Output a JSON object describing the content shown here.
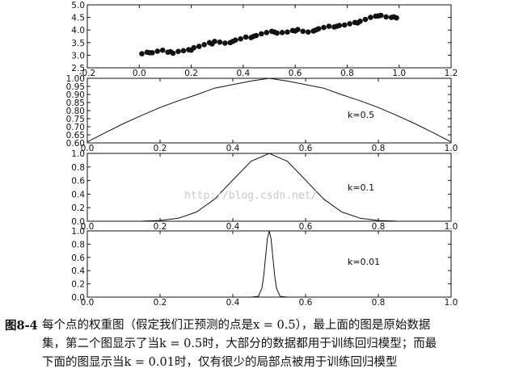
{
  "watermark": "http://blog.csdn.net/",
  "caption": {
    "figure_number": "图8-4",
    "lines": [
      "每个点的权重图（假定我们正预测的点是x = 0.5），最上面的图是原始数据",
      "集，第二个图显示了当k = 0.5时，大部分的数据都用于训练回归模型；而最",
      "下面的图显示当k = 0.01时，仅有很少的局部点被用于训练回归模型"
    ]
  },
  "chart_data": [
    {
      "type": "scatter",
      "title": "",
      "xlabel": "",
      "ylabel": "",
      "xlim": [
        -0.2,
        1.2
      ],
      "ylim": [
        2.5,
        5.0
      ],
      "x_ticks": [
        "-0.2",
        "0.0",
        "0.2",
        "0.4",
        "0.6",
        "0.8",
        "1.0",
        "1.2"
      ],
      "y_ticks": [
        "2.5",
        "3.0",
        "3.5",
        "4.0",
        "4.5",
        "5.0"
      ],
      "marker_color": "#111111",
      "series": [
        {
          "x": [
            0.01,
            0.03,
            0.05,
            0.07,
            0.09,
            0.11,
            0.13,
            0.15,
            0.17,
            0.19,
            0.21,
            0.23,
            0.25,
            0.27,
            0.29,
            0.31,
            0.33,
            0.35,
            0.37,
            0.39,
            0.41,
            0.43,
            0.45,
            0.47,
            0.49,
            0.51,
            0.53,
            0.55,
            0.57,
            0.59,
            0.61,
            0.63,
            0.65,
            0.67,
            0.69,
            0.71,
            0.73,
            0.75,
            0.77,
            0.79,
            0.81,
            0.83,
            0.85,
            0.87,
            0.89,
            0.91,
            0.93,
            0.95,
            0.97,
            0.99,
            0.04,
            0.12,
            0.2,
            0.28,
            0.36,
            0.44,
            0.52,
            0.6,
            0.68,
            0.76,
            0.84,
            0.92,
            0.98
          ],
          "y": [
            3.06,
            3.12,
            3.1,
            3.16,
            3.2,
            3.12,
            3.08,
            3.15,
            3.18,
            3.22,
            3.3,
            3.35,
            3.42,
            3.5,
            3.55,
            3.52,
            3.48,
            3.5,
            3.6,
            3.65,
            3.72,
            3.7,
            3.78,
            3.85,
            3.9,
            3.95,
            3.88,
            3.9,
            3.92,
            3.98,
            4.02,
            3.95,
            3.92,
            3.96,
            4.05,
            4.1,
            4.15,
            4.12,
            4.18,
            4.2,
            4.25,
            4.3,
            4.35,
            4.42,
            4.5,
            4.55,
            4.58,
            4.52,
            4.5,
            4.48,
            3.1,
            3.14,
            3.2,
            3.45,
            3.55,
            3.75,
            3.92,
            3.96,
            4.0,
            4.15,
            4.28,
            4.56,
            4.52
          ]
        }
      ]
    },
    {
      "type": "line",
      "title": "",
      "xlabel": "",
      "ylabel": "",
      "xlim": [
        0.0,
        1.0
      ],
      "ylim": [
        0.6,
        1.0
      ],
      "x_ticks": [
        "0.0",
        "0.2",
        "0.4",
        "0.6",
        "0.8",
        "1.0"
      ],
      "y_ticks": [
        "0.60",
        "0.65",
        "0.70",
        "0.75",
        "0.80",
        "0.85",
        "0.90",
        "0.95",
        "1.00"
      ],
      "annotation": "k=0.5",
      "series": [
        {
          "x": [
            0.0,
            0.05,
            0.1,
            0.15,
            0.2,
            0.25,
            0.3,
            0.35,
            0.4,
            0.45,
            0.5,
            0.55,
            0.6,
            0.65,
            0.7,
            0.75,
            0.8,
            0.85,
            0.9,
            0.95,
            1.0
          ],
          "y": [
            0.606,
            0.664,
            0.72,
            0.771,
            0.819,
            0.861,
            0.898,
            0.939,
            0.961,
            0.983,
            1.0,
            0.983,
            0.961,
            0.939,
            0.898,
            0.861,
            0.819,
            0.771,
            0.72,
            0.664,
            0.606
          ]
        }
      ]
    },
    {
      "type": "line",
      "title": "",
      "xlabel": "",
      "ylabel": "",
      "xlim": [
        0.0,
        1.0
      ],
      "ylim": [
        0.0,
        1.0
      ],
      "x_ticks": [
        "0.0",
        "0.2",
        "0.4",
        "0.6",
        "0.8",
        "1.0"
      ],
      "y_ticks": [
        "0.0",
        "0.2",
        "0.4",
        "0.6",
        "0.8",
        "1.0"
      ],
      "annotation": "k=0.1",
      "series": [
        {
          "x": [
            0.0,
            0.05,
            0.1,
            0.15,
            0.2,
            0.25,
            0.3,
            0.35,
            0.4,
            0.45,
            0.5,
            0.55,
            0.6,
            0.65,
            0.7,
            0.75,
            0.8,
            0.85,
            0.9,
            0.95,
            1.0
          ],
          "y": [
            0.0,
            0.0,
            0.0,
            0.002,
            0.011,
            0.044,
            0.135,
            0.325,
            0.607,
            0.883,
            1.0,
            0.883,
            0.607,
            0.325,
            0.135,
            0.044,
            0.011,
            0.002,
            0.0,
            0.0,
            0.0
          ]
        }
      ]
    },
    {
      "type": "line",
      "title": "",
      "xlabel": "",
      "ylabel": "",
      "xlim": [
        0.0,
        1.0
      ],
      "ylim": [
        0.0,
        1.0
      ],
      "x_ticks": [
        "0.0",
        "0.2",
        "0.4",
        "0.6",
        "0.8",
        "1.0"
      ],
      "y_ticks": [
        "0.0",
        "0.2",
        "0.4",
        "0.6",
        "0.8",
        "1.0"
      ],
      "annotation": "k=0.01",
      "series": [
        {
          "x": [
            0.0,
            0.45,
            0.47,
            0.48,
            0.485,
            0.49,
            0.495,
            0.5,
            0.505,
            0.51,
            0.515,
            0.52,
            0.53,
            0.55,
            1.0
          ],
          "y": [
            0.0,
            0.0,
            0.011,
            0.135,
            0.325,
            0.607,
            0.883,
            1.0,
            0.883,
            0.607,
            0.325,
            0.135,
            0.011,
            0.0,
            0.0
          ]
        }
      ]
    }
  ]
}
